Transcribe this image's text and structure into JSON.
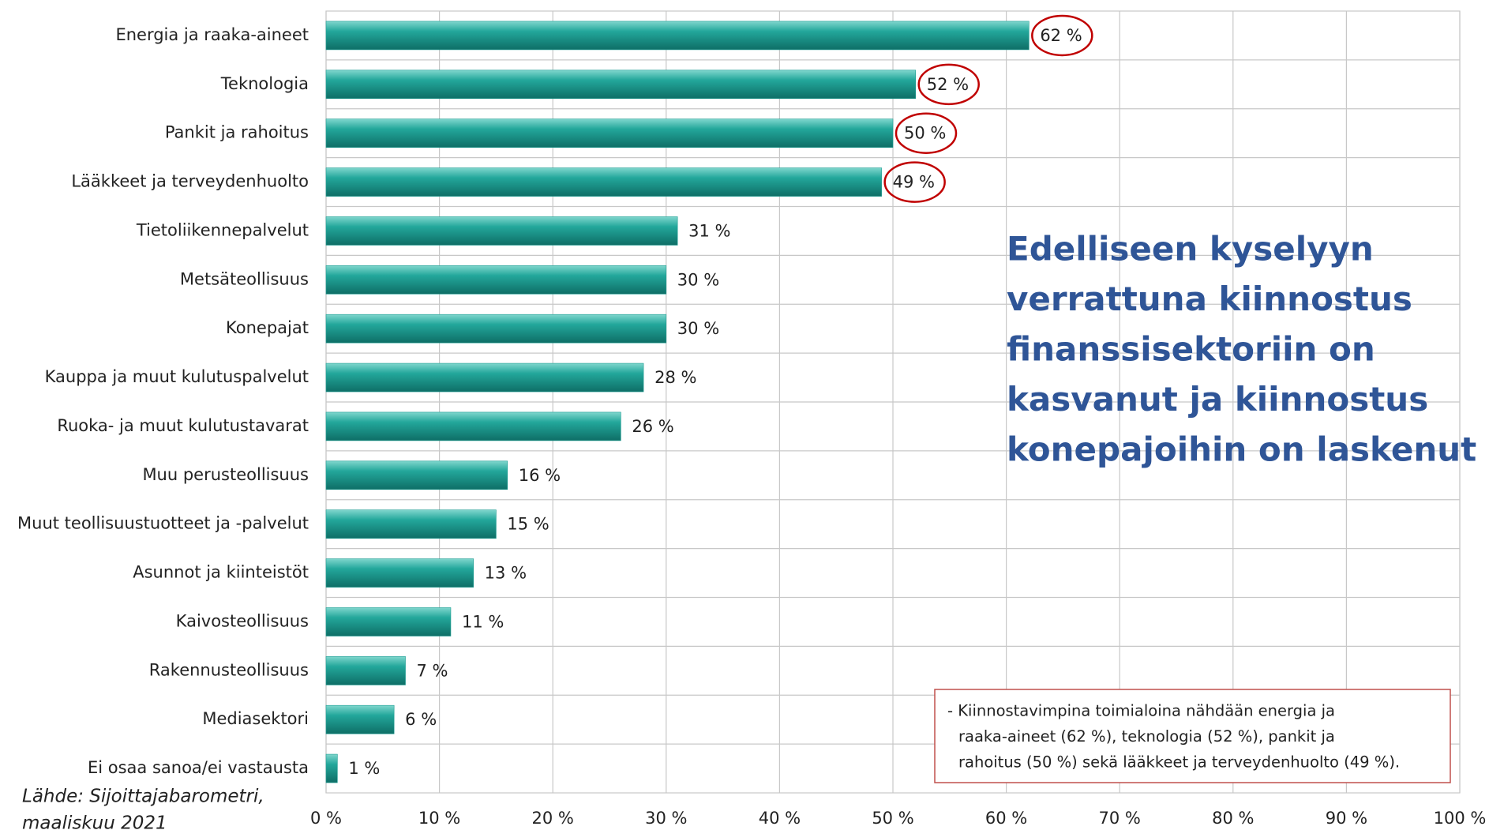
{
  "chart_data": {
    "type": "bar",
    "orientation": "horizontal",
    "categories": [
      "Energia ja raaka-aineet",
      "Teknologia",
      "Pankit ja rahoitus",
      "Lääkkeet ja terveydenhuolto",
      "Tietoliikennepalvelut",
      "Metsäteollisuus",
      "Konepajat",
      "Kauppa ja muut kulutuspalvelut",
      "Ruoka- ja muut kulutustavarat",
      "Muu perusteollisuus",
      "Muut teollisuustuotteet ja -palvelut",
      "Asunnot ja kiinteistöt",
      "Kaivosteollisuus",
      "Rakennusteollisuus",
      "Mediasektori",
      "Ei osaa sanoa/ei vastausta"
    ],
    "values": [
      62,
      52,
      50,
      49,
      31,
      30,
      30,
      28,
      26,
      16,
      15,
      13,
      11,
      7,
      6,
      1
    ],
    "value_labels": [
      "62 %",
      "52 %",
      "50 %",
      "49 %",
      "31 %",
      "30 %",
      "30 %",
      "28 %",
      "26 %",
      "16 %",
      "15 %",
      "13 %",
      "11 %",
      "7 %",
      "6 %",
      "1 %"
    ],
    "color": "#1f9e93",
    "highlighted": [
      0,
      1,
      2,
      3
    ],
    "highlight_color": "#c00000",
    "xlim": [
      0,
      100
    ],
    "xticks": [
      {
        "value": 0,
        "label": "0 %"
      },
      {
        "value": 10,
        "label": "10 %"
      },
      {
        "value": 20,
        "label": "20 %"
      },
      {
        "value": 30,
        "label": "30 %"
      },
      {
        "value": 40,
        "label": "40 %"
      },
      {
        "value": 50,
        "label": "50 %"
      },
      {
        "value": 60,
        "label": "60 %"
      },
      {
        "value": 70,
        "label": "70 %"
      },
      {
        "value": 80,
        "label": "80 %"
      },
      {
        "value": 90,
        "label": "90 %"
      },
      {
        "value": 100,
        "label": "100 %"
      }
    ],
    "grid": true,
    "annotation_lines": [
      "Edelliseen kyselyyn",
      "verrattuna kiinnostus",
      "finanssisektoriin on",
      "kasvanut ja kiinnostus",
      "konepajoihin on laskenut"
    ],
    "note_lines": [
      "- Kiinnostavimpina toimialoina nähdään energia ja",
      "raaka-aineet (62 %), teknologia (52 %), pankit ja",
      "rahoitus (50 %) sekä lääkkeet ja terveydenhuolto (49 %)."
    ],
    "source_lines": [
      "Lähde: Sijoittajabarometri,",
      "maaliskuu 2021"
    ]
  }
}
